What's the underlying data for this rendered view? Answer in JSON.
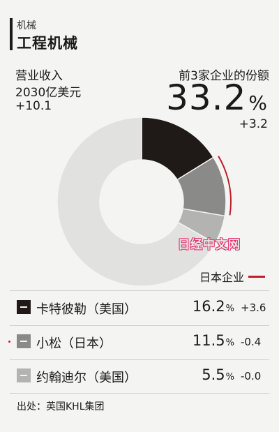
{
  "header": {
    "category": "机械",
    "title": "工程机械"
  },
  "revenue": {
    "label": "营业收入",
    "value": "2030亿美元",
    "change": "+10.1"
  },
  "share": {
    "label": "前3家企业的份额",
    "value": "33.2",
    "unit": "%",
    "change": "+3.2"
  },
  "watermark": "日经中文网",
  "japan_legend": {
    "label": "日本企业",
    "color": "#c01f2a"
  },
  "source": "出处：英国KHL集团",
  "chart_data": {
    "type": "pie",
    "subtype": "donut",
    "total_label": "营业收入 2030亿美元",
    "unit": "%",
    "series": [
      {
        "name": "卡特彼勒（美国）",
        "value": 16.2,
        "value_text": "16.2",
        "change": "+3.6",
        "color": "#1f1a17",
        "japanese": false
      },
      {
        "name": "小松（日本）",
        "value": 11.5,
        "value_text": "11.5",
        "change": "-0.4",
        "color": "#8a8a88",
        "japanese": true
      },
      {
        "name": "约翰迪尔（美国）",
        "value": 5.5,
        "value_text": "5.5",
        "change": "-0.0",
        "color": "#b3b3b1",
        "japanese": false
      }
    ],
    "remainder": {
      "value": 66.8,
      "color": "#e1e1df"
    },
    "highlight_color": "#c01f2a"
  }
}
